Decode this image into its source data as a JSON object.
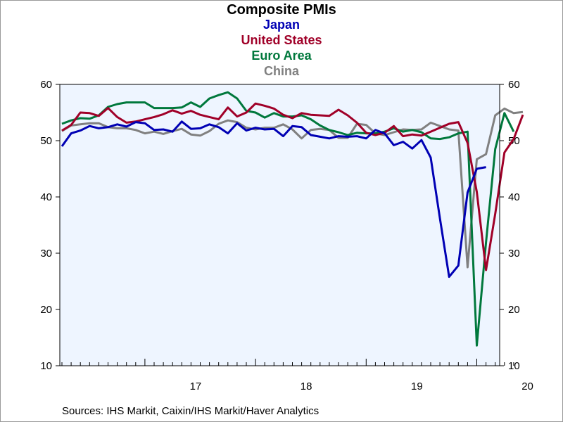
{
  "chart_data": {
    "type": "line",
    "title": "Composite PMIs",
    "ylim": [
      10,
      60
    ],
    "y_ticks": [
      10,
      20,
      30,
      40,
      50,
      60
    ],
    "x_tick_labels": [
      "17",
      "18",
      "19",
      "20"
    ],
    "x_start": "2016-04",
    "x_end": "2020-05",
    "grid": false,
    "background_color": "#eef5ff",
    "series": [
      {
        "name": "Japan",
        "color": "#0000b4",
        "values": [
          49.0,
          51.3,
          51.8,
          52.6,
          52.2,
          52.4,
          52.9,
          52.5,
          53.3,
          53.1,
          51.9,
          52.0,
          51.6,
          53.4,
          52.1,
          52.2,
          52.9,
          52.4,
          51.3,
          53.1,
          51.8,
          52.3,
          52.0,
          52.1,
          50.8,
          52.6,
          52.4,
          51.0,
          50.7,
          50.4,
          50.8,
          50.7,
          50.8,
          50.4,
          51.9,
          51.3,
          49.2,
          49.8,
          48.6,
          50.1,
          47.0,
          36.2,
          25.8,
          27.8,
          40.8,
          45.0,
          45.3
        ]
      },
      {
        "name": "United States",
        "color": "#a00028",
        "values": [
          51.8,
          52.8,
          55.0,
          54.9,
          54.4,
          55.8,
          54.2,
          53.2,
          53.4,
          53.8,
          54.2,
          54.7,
          55.4,
          54.8,
          55.3,
          54.6,
          54.2,
          53.8,
          55.9,
          54.3,
          55.0,
          56.6,
          56.2,
          55.7,
          54.6,
          54.0,
          54.9,
          54.6,
          54.5,
          54.4,
          55.5,
          54.5,
          53.2,
          51.4,
          51.0,
          51.4,
          52.6,
          50.8,
          51.1,
          50.9,
          51.6,
          52.3,
          53.0,
          53.3,
          49.6,
          40.9,
          27.0,
          37.0,
          47.9,
          50.3,
          54.6
        ]
      },
      {
        "name": "Euro Area",
        "color": "#00783c",
        "values": [
          53.0,
          53.6,
          54.0,
          53.9,
          54.5,
          56.0,
          56.5,
          56.8,
          56.8,
          56.8,
          55.8,
          55.8,
          55.8,
          55.9,
          56.8,
          56.0,
          57.5,
          58.1,
          58.6,
          57.5,
          55.3,
          55.0,
          54.1,
          54.9,
          54.3,
          54.3,
          54.5,
          53.8,
          52.7,
          51.9,
          51.5,
          51.0,
          51.4,
          51.3,
          51.3,
          51.6,
          52.2,
          51.6,
          51.9,
          51.5,
          50.4,
          50.3,
          50.6,
          51.3,
          51.6,
          13.6,
          31.9,
          48.5,
          54.9,
          51.6
        ]
      },
      {
        "name": "China",
        "color": "#808080",
        "values": [
          51.7,
          52.7,
          52.9,
          53.1,
          53.1,
          52.4,
          52.2,
          52.2,
          51.9,
          51.3,
          51.6,
          51.2,
          51.7,
          52.1,
          51.1,
          50.9,
          51.7,
          53.0,
          53.6,
          53.3,
          52.3,
          52.0,
          52.3,
          52.3,
          52.9,
          52.0,
          50.4,
          51.9,
          52.1,
          51.9,
          50.5,
          50.5,
          53.0,
          52.8,
          51.3,
          51.0,
          51.5,
          52.0,
          51.9,
          52.0,
          53.2,
          52.6,
          52.0,
          51.8,
          27.5,
          46.7,
          47.6,
          54.5,
          55.7,
          54.9,
          55.1
        ]
      }
    ]
  },
  "source_text": "Sources:  IHS Markit, Caixin/IHS Markit/Haver Analytics"
}
